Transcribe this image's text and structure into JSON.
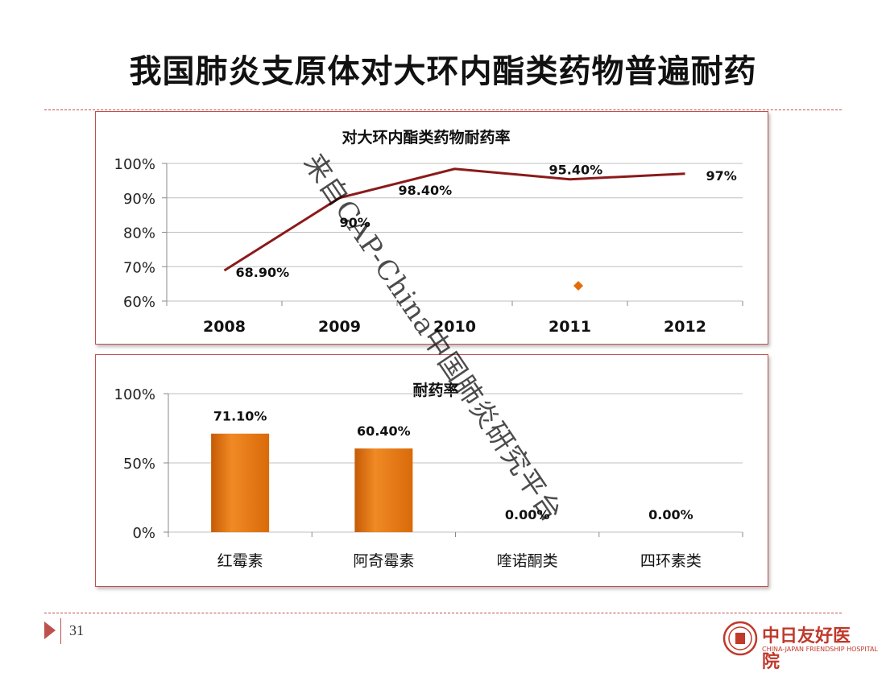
{
  "slide": {
    "title": "我国肺炎支原体对大环内酯类药物普遍耐药",
    "page_number": "31",
    "watermark": "来自CAP-China中国肺炎研究平台",
    "logo_text": "中日友好医院",
    "logo_subtext": "CHINA-JAPAN FRIENDSHIP HOSPITAL"
  },
  "colors": {
    "accent": "#c0504d",
    "line": "#8b1a1a",
    "bar": "#e36c09"
  },
  "chart_data": [
    {
      "type": "line",
      "title": "对大环内酯类药物耐药率",
      "categories": [
        "2008",
        "2009",
        "2010",
        "2011",
        "2012"
      ],
      "values": [
        68.9,
        90,
        98.4,
        95.4,
        97
      ],
      "labels": [
        "68.90%",
        "90%",
        "98.40%",
        "95.40%",
        "97%"
      ],
      "ylim": [
        60,
        100
      ],
      "yticks": [
        60,
        70,
        80,
        90,
        100
      ],
      "ytick_labels": [
        "60%",
        "70%",
        "80%",
        "90%",
        "100%"
      ],
      "grid": true
    },
    {
      "type": "bar",
      "title": "耐药率",
      "categories": [
        "红霉素",
        "阿奇霉素",
        "喹诺酮类",
        "四环素类"
      ],
      "values": [
        71.1,
        60.4,
        0,
        0
      ],
      "labels": [
        "71.10%",
        "60.40%",
        "0.00%",
        "0.00%"
      ],
      "ylim": [
        0,
        100
      ],
      "yticks": [
        0,
        50,
        100
      ],
      "ytick_labels": [
        "0%",
        "50%",
        "100%"
      ],
      "grid": true
    }
  ]
}
